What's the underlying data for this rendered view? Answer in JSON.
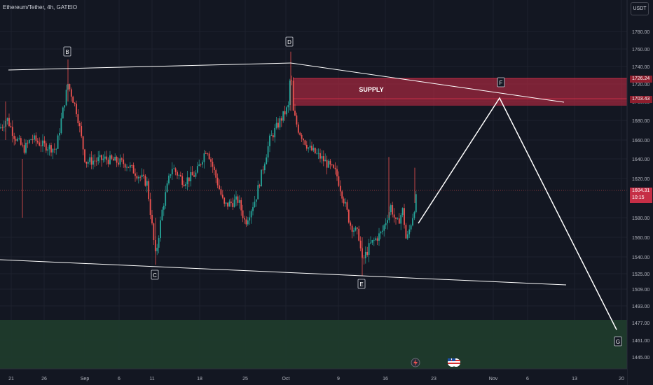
{
  "header": {
    "symbol_title": "Ethereum/Tether, 4h, GATEIO",
    "currency_unit": "USDT"
  },
  "price_axis": {
    "ticks": [
      "1780.00",
      "1760.00",
      "1740.00",
      "1720.00",
      "1700.00",
      "1680.00",
      "1660.00",
      "1640.00",
      "1620.00",
      "1580.00",
      "1560.00",
      "1540.00",
      "1525.00",
      "1509.00",
      "1493.00",
      "1477.00",
      "1461.00",
      "1445.00"
    ],
    "current_price": "1604.31",
    "countdown": "10:15",
    "zone_top_price": "1726.24",
    "zone_bottom_price": "1703.43"
  },
  "time_axis": {
    "labels": [
      "21",
      "26",
      "Sep",
      "6",
      "11",
      "18",
      "25",
      "Oct",
      "9",
      "16",
      "23",
      "Nov",
      "6",
      "13",
      "20"
    ]
  },
  "annotations": {
    "points": [
      "B",
      "C",
      "D",
      "E",
      "F",
      "G"
    ],
    "supply_label": "SUPPLY"
  },
  "colors": {
    "background": "#131722",
    "candle_up": "#26a69a",
    "candle_down": "#ef5350",
    "supply_zone": "#a8283f",
    "demand_zone": "#1f3b2c",
    "drawing": "#ffffff"
  },
  "events": {
    "icons": [
      "lightning-icon",
      "us-flag-icon"
    ]
  }
}
